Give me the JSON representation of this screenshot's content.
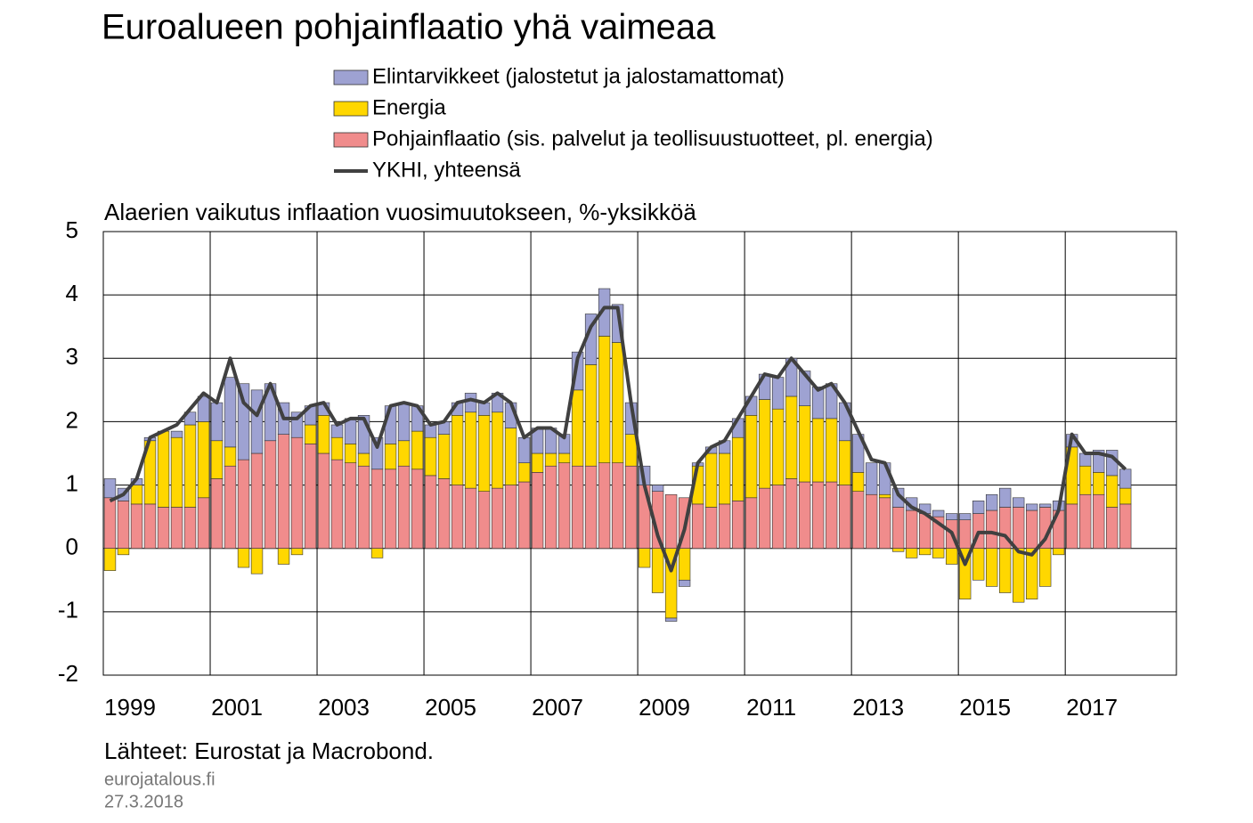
{
  "chart_data": {
    "type": "stacked-bar-line",
    "title": "Euroalueen pohjainflaatio yhä vaimeaa",
    "subtitle": "Alaerien vaikutus inflaation vuosimuutokseen, %-yksikköä",
    "source": "Lähteet: Eurostat ja Macrobond.",
    "site": "eurojatalous.fi",
    "date": "27.3.2018",
    "x": [
      1999,
      1999.25,
      1999.5,
      1999.75,
      2000,
      2000.25,
      2000.5,
      2000.75,
      2001,
      2001.25,
      2001.5,
      2001.75,
      2002,
      2002.25,
      2002.5,
      2002.75,
      2003,
      2003.25,
      2003.5,
      2003.75,
      2004,
      2004.25,
      2004.5,
      2004.75,
      2005,
      2005.25,
      2005.5,
      2005.75,
      2006,
      2006.25,
      2006.5,
      2006.75,
      2007,
      2007.25,
      2007.5,
      2007.75,
      2008,
      2008.25,
      2008.5,
      2008.75,
      2009,
      2009.25,
      2009.5,
      2009.75,
      2010,
      2010.25,
      2010.5,
      2010.75,
      2011,
      2011.25,
      2011.5,
      2011.75,
      2012,
      2012.25,
      2012.5,
      2012.75,
      2013,
      2013.25,
      2013.5,
      2013.75,
      2014,
      2014.25,
      2014.5,
      2014.75,
      2015,
      2015.25,
      2015.5,
      2015.75,
      2016,
      2016.25,
      2016.5,
      2016.75,
      2017,
      2017.25,
      2017.5,
      2017.75,
      2018
    ],
    "series": [
      {
        "name": "Pohjainflaatio (sis. palvelut ja teollisuustuotteet, pl. energia)",
        "kind": "bar",
        "color": "#f08c8c",
        "values": [
          0.8,
          0.75,
          0.7,
          0.7,
          0.65,
          0.65,
          0.65,
          0.8,
          1.1,
          1.3,
          1.4,
          1.5,
          1.7,
          1.8,
          1.75,
          1.65,
          1.5,
          1.4,
          1.35,
          1.3,
          1.25,
          1.25,
          1.3,
          1.25,
          1.15,
          1.1,
          1.0,
          0.95,
          0.9,
          0.95,
          1.0,
          1.05,
          1.2,
          1.3,
          1.35,
          1.3,
          1.3,
          1.35,
          1.35,
          1.3,
          1.0,
          0.9,
          0.85,
          0.8,
          0.7,
          0.65,
          0.7,
          0.75,
          0.8,
          0.95,
          1.0,
          1.1,
          1.05,
          1.05,
          1.05,
          1.0,
          0.9,
          0.85,
          0.8,
          0.65,
          0.6,
          0.55,
          0.5,
          0.45,
          0.45,
          0.55,
          0.6,
          0.65,
          0.65,
          0.6,
          0.65,
          0.6,
          0.7,
          0.85,
          0.85,
          0.65,
          0.7
        ]
      },
      {
        "name": "Energia",
        "kind": "bar",
        "color": "#ffd700",
        "values": [
          -0.35,
          -0.1,
          0.3,
          1.0,
          1.2,
          1.1,
          1.3,
          1.2,
          0.6,
          0.3,
          -0.3,
          -0.4,
          0.0,
          -0.25,
          -0.1,
          0.3,
          0.6,
          0.35,
          0.3,
          0.2,
          -0.15,
          0.4,
          0.4,
          0.6,
          0.6,
          0.7,
          1.1,
          1.2,
          1.2,
          1.2,
          0.9,
          0.3,
          0.3,
          0.2,
          0.15,
          1.2,
          1.6,
          2.0,
          1.9,
          0.5,
          -0.3,
          -0.7,
          -1.1,
          -0.5,
          0.6,
          0.85,
          0.8,
          1.0,
          1.3,
          1.4,
          1.2,
          1.3,
          1.2,
          1.0,
          1.0,
          0.7,
          0.3,
          0.0,
          0.05,
          -0.05,
          -0.15,
          -0.1,
          -0.15,
          -0.25,
          -0.8,
          -0.5,
          -0.6,
          -0.7,
          -0.85,
          -0.8,
          -0.6,
          -0.1,
          0.9,
          0.45,
          0.35,
          0.5,
          0.25
        ]
      },
      {
        "name": "Elintarvikkeet (jalostetut ja jalostamattomat)",
        "kind": "bar",
        "color": "#9ea2d2",
        "values": [
          0.3,
          0.2,
          0.1,
          0.05,
          0.0,
          0.1,
          0.2,
          0.4,
          0.6,
          1.1,
          1.2,
          1.0,
          0.9,
          0.5,
          0.4,
          0.3,
          0.2,
          0.2,
          0.4,
          0.6,
          0.5,
          0.6,
          0.6,
          0.4,
          0.2,
          0.2,
          0.2,
          0.3,
          0.2,
          0.3,
          0.4,
          0.4,
          0.4,
          0.4,
          0.3,
          0.6,
          0.8,
          0.75,
          0.6,
          0.5,
          0.3,
          0.1,
          -0.05,
          -0.1,
          0.05,
          0.1,
          0.2,
          0.3,
          0.3,
          0.4,
          0.5,
          0.6,
          0.55,
          0.5,
          0.55,
          0.6,
          0.6,
          0.5,
          0.5,
          0.3,
          0.2,
          0.15,
          0.1,
          0.1,
          0.1,
          0.2,
          0.25,
          0.3,
          0.15,
          0.1,
          0.05,
          0.15,
          0.2,
          0.2,
          0.35,
          0.4,
          0.3
        ]
      },
      {
        "name": "YKHI, yhteensä",
        "kind": "line",
        "color": "#404040",
        "values": [
          0.75,
          0.85,
          1.1,
          1.75,
          1.85,
          1.95,
          2.2,
          2.45,
          2.3,
          3.0,
          2.3,
          2.1,
          2.6,
          2.05,
          2.05,
          2.25,
          2.3,
          1.95,
          2.05,
          2.05,
          1.6,
          2.25,
          2.3,
          2.25,
          1.95,
          2.0,
          2.3,
          2.35,
          2.3,
          2.45,
          2.3,
          1.75,
          1.9,
          1.9,
          1.75,
          3.0,
          3.5,
          3.8,
          3.8,
          2.3,
          1.0,
          0.2,
          -0.35,
          0.3,
          1.35,
          1.6,
          1.7,
          2.05,
          2.4,
          2.75,
          2.7,
          3.0,
          2.75,
          2.5,
          2.6,
          2.3,
          1.85,
          1.4,
          1.35,
          0.85,
          0.65,
          0.55,
          0.4,
          0.25,
          -0.25,
          0.25,
          0.25,
          0.2,
          -0.05,
          -0.1,
          0.15,
          0.6,
          1.8,
          1.5,
          1.5,
          1.45,
          1.25
        ]
      }
    ],
    "xlim": [
      1999,
      2019.08
    ],
    "xticks": [
      1999,
      2001,
      2003,
      2005,
      2007,
      2009,
      2011,
      2013,
      2015,
      2017
    ],
    "ylim": [
      -2,
      5
    ],
    "yticks": [
      -2,
      -1,
      0,
      1,
      2,
      3,
      4,
      5
    ],
    "grid": true
  }
}
